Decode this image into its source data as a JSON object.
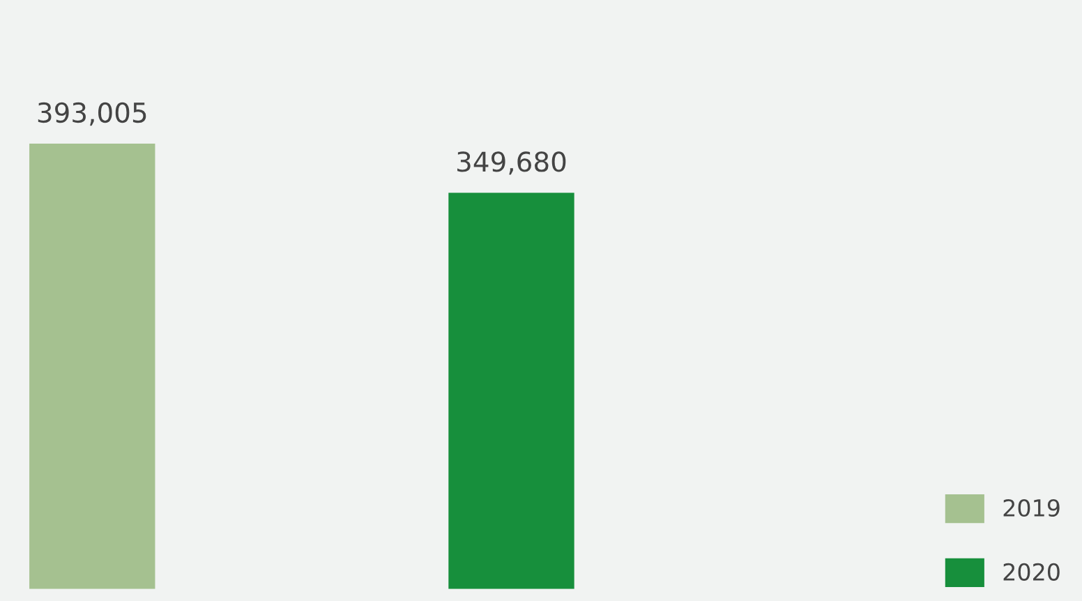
{
  "chart_data": {
    "type": "bar",
    "categories": [
      null,
      null
    ],
    "series": [
      {
        "name": "2019",
        "color": "#a5c190",
        "values": [
          393005,
          null
        ],
        "value_labels": [
          "393,005",
          null
        ]
      },
      {
        "name": "2020",
        "color": "#178f3c",
        "values": [
          null,
          349680
        ],
        "value_labels": [
          null,
          "349,680"
        ]
      }
    ],
    "stacked": true,
    "legend": "bottom right",
    "grid": false
  }
}
